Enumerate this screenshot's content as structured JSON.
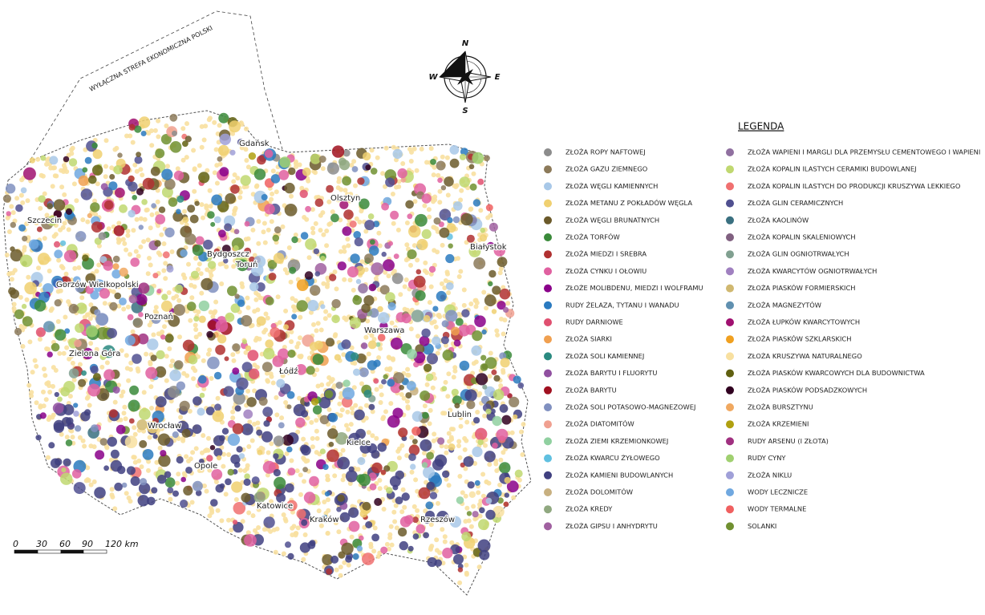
{
  "map": {
    "eez_label": "WYŁĄCZNA STREFA EKONOMICZNA POLSKI",
    "compass": {
      "n": "N",
      "e": "E",
      "s": "S",
      "w": "W"
    },
    "cities": [
      "Gdańsk",
      "Olsztyn",
      "Szczecin",
      "Białystok",
      "Bydgoszcz",
      "Toruń",
      "Gorzów Wielkopolski",
      "Poznań",
      "Warszawa",
      "Zielona Góra",
      "Łódź",
      "Lublin",
      "Wrocław",
      "Kielce",
      "Opole",
      "Katowice",
      "Kraków",
      "Rzeszów"
    ],
    "scale_labels": [
      "0",
      "30",
      "60",
      "90",
      "120 km"
    ]
  },
  "legend": {
    "title": "LEGENDA",
    "items": [
      {
        "label": "ZŁOŻA ROPY NAFTOWEJ",
        "color": "#8c8c8c"
      },
      {
        "label": "ZŁOŻA GAZU ZIEMNEGO",
        "color": "#8c7a5a"
      },
      {
        "label": "ZŁOŻA WĘGLI KAMIENNYCH",
        "color": "#a8c8e8"
      },
      {
        "label": "ZŁOŻA METANU Z POKŁADÓW WĘGLA",
        "color": "#f0d070"
      },
      {
        "label": "ZŁOŻA WĘGLI BRUNATNYCH",
        "color": "#6b5a2a"
      },
      {
        "label": "ZŁOŻA TORFÓW",
        "color": "#3a8a3a"
      },
      {
        "label": "ZŁOŻA MIEDZI I SREBRA",
        "color": "#b03030"
      },
      {
        "label": "ZŁOŻA CYNKU I OŁOWIU",
        "color": "#e060a0"
      },
      {
        "label": "ZŁOŻE MOLIBDENU, MIEDZI I WOLFRAMU",
        "color": "#8a008a"
      },
      {
        "label": "RUDY ŻELAZA, TYTANU I WANADU",
        "color": "#2a7ac0"
      },
      {
        "label": "RUDY DARNIOWE",
        "color": "#e05070"
      },
      {
        "label": "ZŁOŻA SIARKI",
        "color": "#f0a050"
      },
      {
        "label": "ZŁOŻA SOLI KAMIENNEJ",
        "color": "#2a8a80"
      },
      {
        "label": "ZŁOŻA BARYTU I FLUORYTU",
        "color": "#9050a0"
      },
      {
        "label": "ZŁOŻA BARYTU",
        "color": "#a01020"
      },
      {
        "label": "ZŁOŻA SOLI POTASOWO-MAGNEZOWEJ",
        "color": "#8090c0"
      },
      {
        "label": "ZŁOŻA DIATOMITÓW",
        "color": "#f0a090"
      },
      {
        "label": "ZŁOŻA ZIEMI KRZEMIONKOWEJ",
        "color": "#90d0a0"
      },
      {
        "label": "ZŁOŻA KWARCU ŻYŁOWEGO",
        "color": "#60c0e0"
      },
      {
        "label": "ZŁOŻA KAMIENI BUDOWLANYCH",
        "color": "#404080"
      },
      {
        "label": "ZŁOŻA DOLOMITÓW",
        "color": "#c8b080"
      },
      {
        "label": "ZŁOŻA KREDY",
        "color": "#90a880"
      },
      {
        "label": "ZŁOŻA GIPSU I ANHYDRYTU",
        "color": "#a060a0"
      },
      {
        "label": "ZŁOŻA WAPIENI I MARGLI DLA PRZEMYSŁU CEMENTOWEGO I WAPIENI",
        "color": "#9070a0"
      },
      {
        "label": "ZŁOŻA KOPALIN ILASTYCH CERAMIKI BUDOWLANEJ",
        "color": "#c0d870"
      },
      {
        "label": "ZŁOŻA KOPALIN ILASTYCH DO PRODUKCJI KRUSZYWA LEKKIEGO",
        "color": "#f07070"
      },
      {
        "label": "ZŁOŻA GLIN CERAMICZNYCH",
        "color": "#505090"
      },
      {
        "label": "ZŁOŻA KAOLINÓW",
        "color": "#3a7080"
      },
      {
        "label": "ZŁOŻA KOPALIN SKALENIOWYCH",
        "color": "#806080"
      },
      {
        "label": "ZŁOŻA GLIN OGNIOTRWAŁYCH",
        "color": "#80a090"
      },
      {
        "label": "ZŁOŻA KWARCYTÓW OGNIOTRWAŁYCH",
        "color": "#a080c0"
      },
      {
        "label": "ZŁOŻA PIASKÓW FORMIERSKICH",
        "color": "#d0b870"
      },
      {
        "label": "ZŁOŻA MAGNEZYTÓW",
        "color": "#6090b0"
      },
      {
        "label": "ZŁOŻA ŁUPKÓW KWARCYTOWYCH",
        "color": "#a01070"
      },
      {
        "label": "ZŁOŻA PIASKÓW SZKLARSKICH",
        "color": "#f0a020"
      },
      {
        "label": "ZŁOŻA KRUSZYWA NATURALNEGO",
        "color": "#f8e0a0"
      },
      {
        "label": "ZŁOŻA PIASKÓW KWARCOWYCH DLA BUDOWNICTWA",
        "color": "#606010"
      },
      {
        "label": "ZŁOŻA PIASKÓW PODSADZKOWYCH",
        "color": "#300020"
      },
      {
        "label": "ZŁOŻA BURSZTYNU",
        "color": "#f0a860"
      },
      {
        "label": "ZŁOŻA KRZEMIENI",
        "color": "#b0a010"
      },
      {
        "label": "RUDY ARSENU (I ZŁOTA)",
        "color": "#a03080"
      },
      {
        "label": "RUDY CYNY",
        "color": "#a0d070"
      },
      {
        "label": "ZŁOŻA NIKLU",
        "color": "#a0a0d8"
      },
      {
        "label": "WODY LECZNICZE",
        "color": "#70a8e0"
      },
      {
        "label": "WODY TERMALNE",
        "color": "#f06060"
      },
      {
        "label": "SOLANKI",
        "color": "#709030"
      }
    ]
  }
}
